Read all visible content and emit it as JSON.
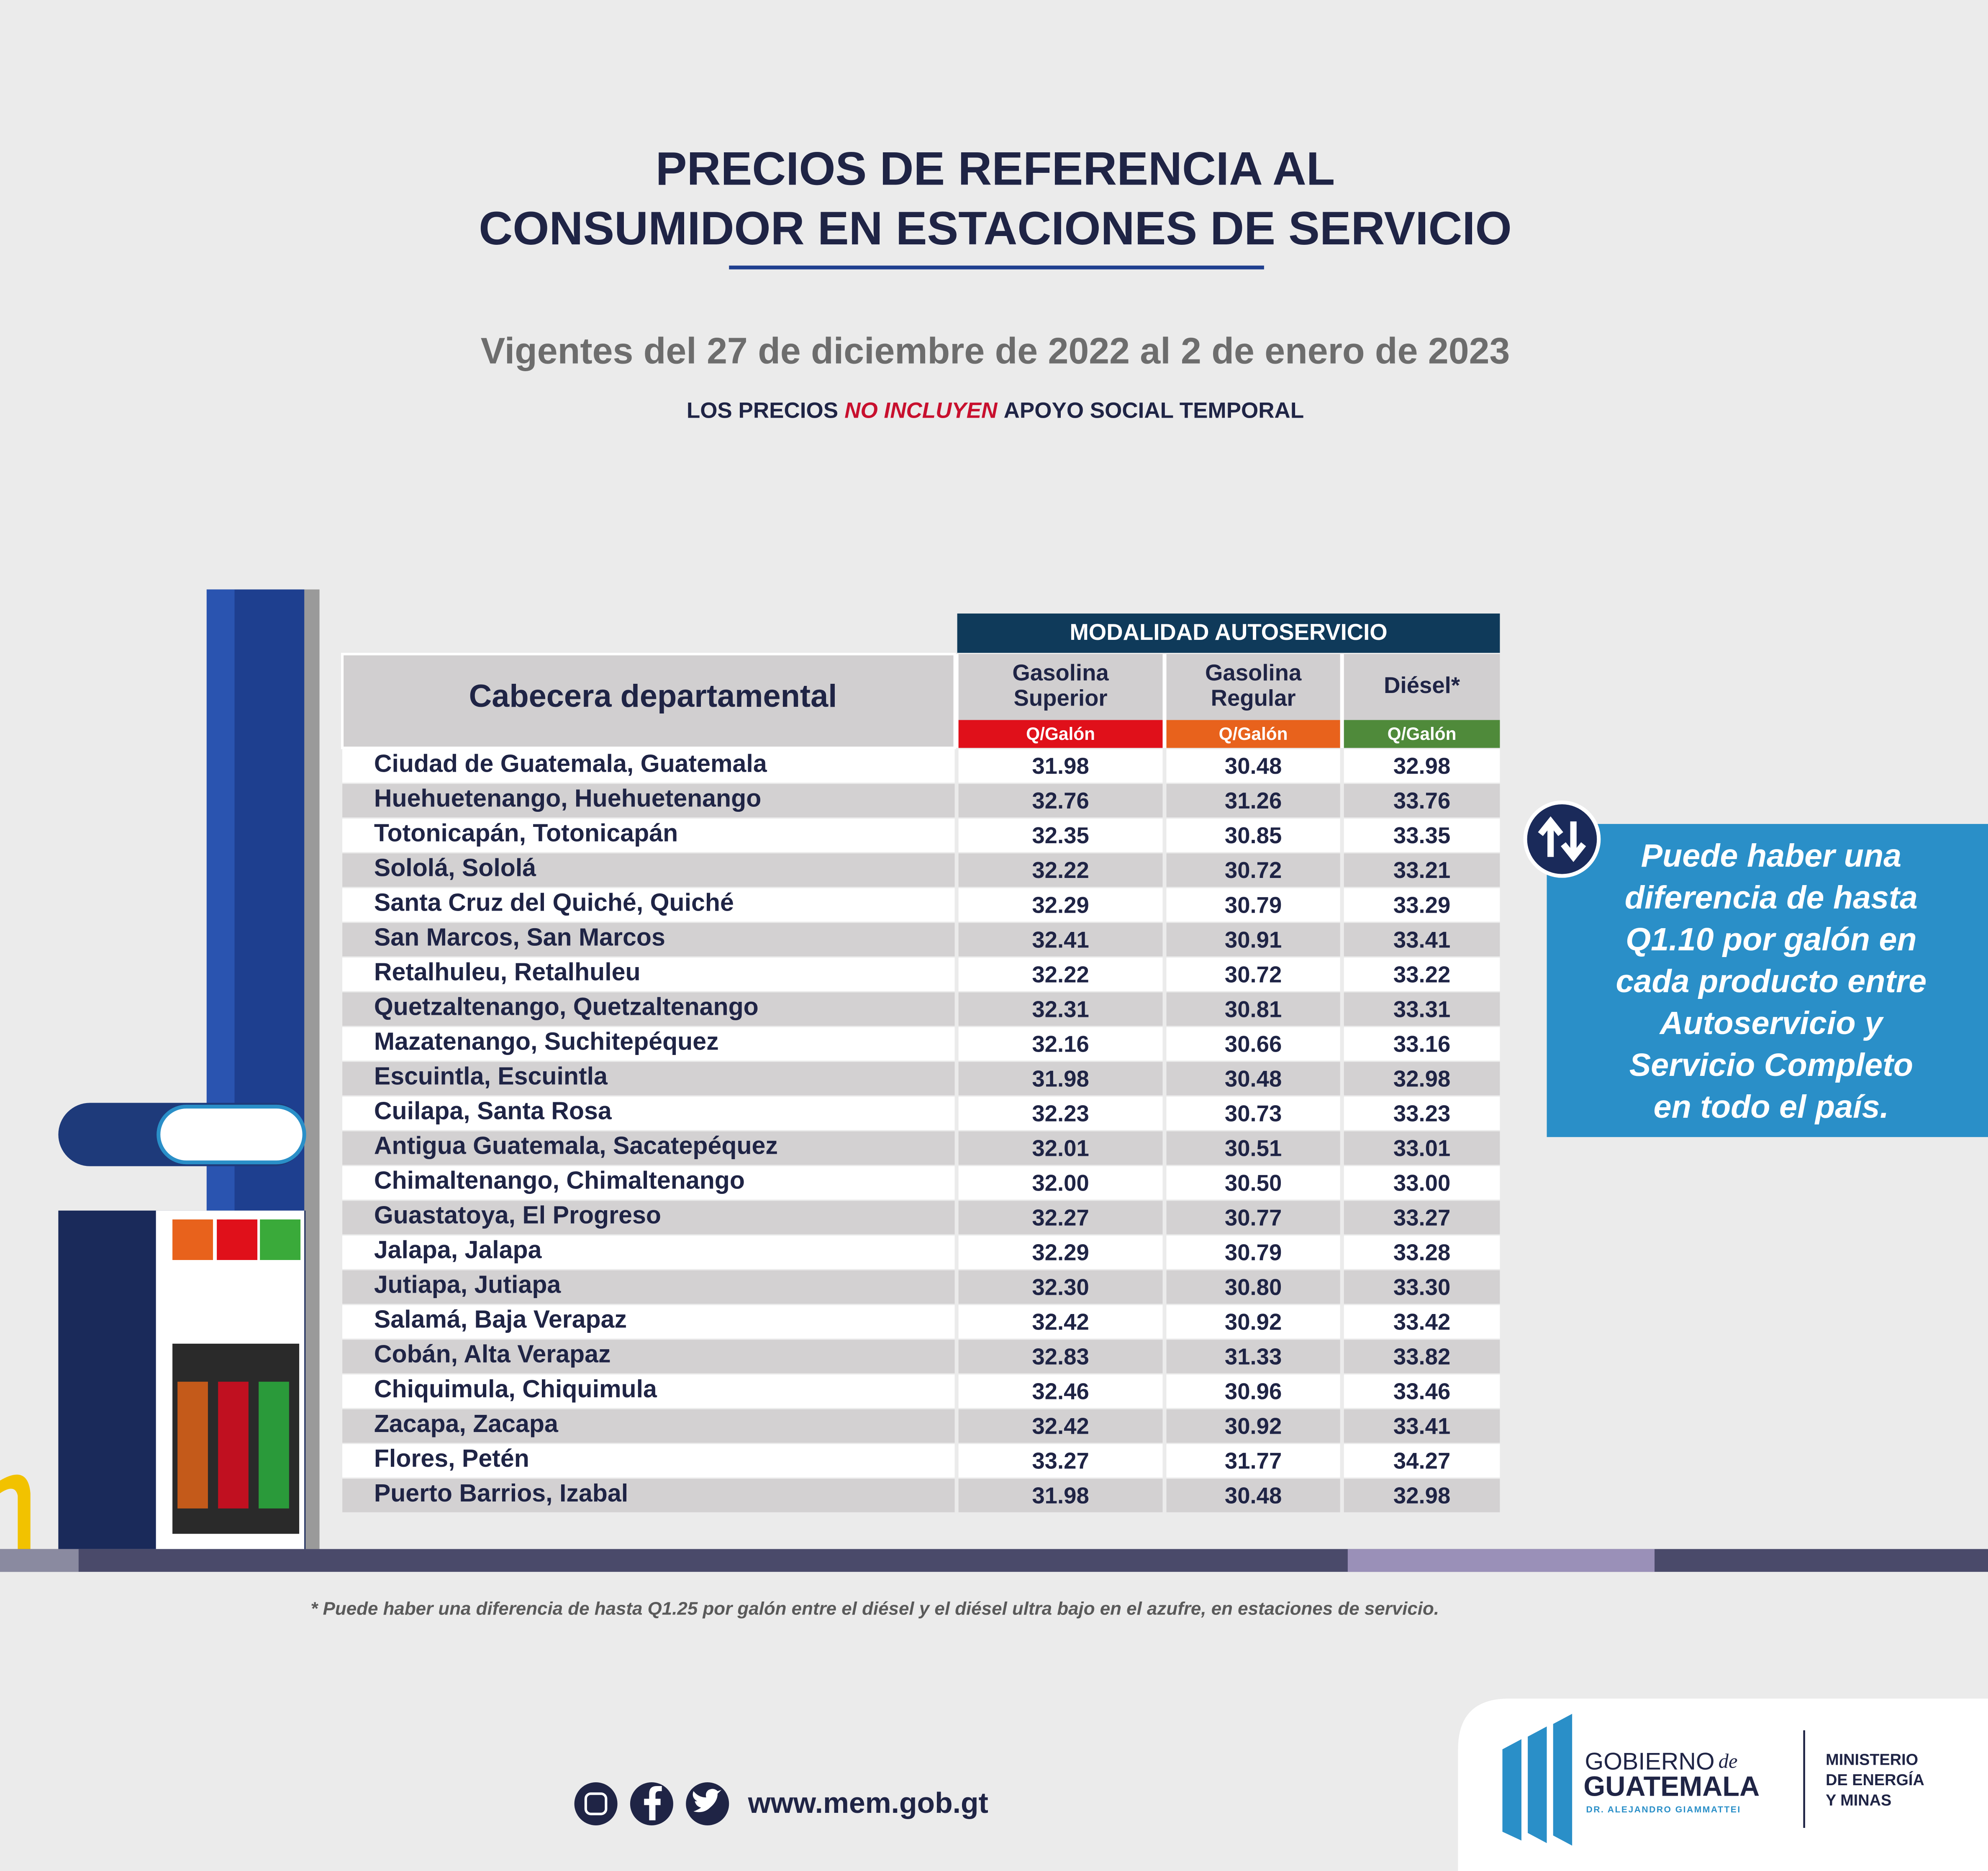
{
  "header": {
    "title_lines": [
      "PRECIOS DE REFERENCIA AL",
      "CONSUMIDOR EN ESTACIONES DE SERVICIO"
    ],
    "validity": "Vigentes del 27 de diciembre de 2022 al 2 de enero de 2023",
    "notice": {
      "before": "LOS PRECIOS",
      "highlight": "NO INCLUYEN",
      "after": "APOYO SOCIAL TEMPORAL"
    }
  },
  "table": {
    "group_header": "MODALIDAD AUTOSERVICIO",
    "name_header": "Cabecera departamental",
    "columns": [
      {
        "lines": [
          "Gasolina",
          "Superior"
        ],
        "unit": "Q/Galón",
        "color": "#e0101a"
      },
      {
        "lines": [
          "Gasolina",
          "Regular"
        ],
        "unit": "Q/Galón",
        "color": "#e8621c"
      },
      {
        "lines": [
          "Diésel*"
        ],
        "unit": "Q/Galón",
        "color": "#4f8a3a"
      }
    ],
    "rows": [
      [
        "Ciudad de Guatemala, Guatemala",
        "31.98",
        "30.48",
        "32.98"
      ],
      [
        "Huehuetenango, Huehuetenango",
        "32.76",
        "31.26",
        "33.76"
      ],
      [
        "Totonicapán, Totonicapán",
        "32.35",
        "30.85",
        "33.35"
      ],
      [
        "Sololá, Sololá",
        "32.22",
        "30.72",
        "33.21"
      ],
      [
        "Santa Cruz del Quiché, Quiché",
        "32.29",
        "30.79",
        "33.29"
      ],
      [
        "San Marcos, San Marcos",
        "32.41",
        "30.91",
        "33.41"
      ],
      [
        "Retalhuleu, Retalhuleu",
        "32.22",
        "30.72",
        "33.22"
      ],
      [
        "Quetzaltenango, Quetzaltenango",
        "32.31",
        "30.81",
        "33.31"
      ],
      [
        "Mazatenango, Suchitepéquez",
        "32.16",
        "30.66",
        "33.16"
      ],
      [
        "Escuintla, Escuintla",
        "31.98",
        "30.48",
        "32.98"
      ],
      [
        "Cuilapa, Santa Rosa",
        "32.23",
        "30.73",
        "33.23"
      ],
      [
        "Antigua Guatemala, Sacatepéquez",
        "32.01",
        "30.51",
        "33.01"
      ],
      [
        "Chimaltenango, Chimaltenango",
        "32.00",
        "30.50",
        "33.00"
      ],
      [
        "Guastatoya, El Progreso",
        "32.27",
        "30.77",
        "33.27"
      ],
      [
        "Jalapa, Jalapa",
        "32.29",
        "30.79",
        "33.28"
      ],
      [
        "Jutiapa, Jutiapa",
        "32.30",
        "30.80",
        "33.30"
      ],
      [
        "Salamá, Baja Verapaz",
        "32.42",
        "30.92",
        "33.42"
      ],
      [
        "Cobán, Alta Verapaz",
        "32.83",
        "31.33",
        "33.82"
      ],
      [
        "Chiquimula, Chiquimula",
        "32.46",
        "30.96",
        "33.46"
      ],
      [
        "Zacapa, Zacapa",
        "32.42",
        "30.92",
        "33.41"
      ],
      [
        "Flores, Petén",
        "33.27",
        "31.77",
        "34.27"
      ],
      [
        "Puerto Barrios, Izabal",
        "31.98",
        "30.48",
        "32.98"
      ]
    ]
  },
  "side_note": {
    "lines": [
      "Puede haber una",
      "diferencia de hasta",
      "Q1.10 por galón en",
      "cada producto entre",
      "Autoservicio y",
      "Servicio Completo",
      "en todo el país."
    ]
  },
  "footnote": "* Puede haber una diferencia de hasta Q1.25 por galón entre el diésel y el diésel ultra bajo en el azufre, en estaciones de servicio.",
  "footer": {
    "website": "www.mem.gob.gt",
    "logo": {
      "line1": "GOBIERNO",
      "script": "de",
      "line2": "GUATEMALA",
      "line3": "DR. ALEJANDRO GIAMMATTEI",
      "ministry_lines": [
        "MINISTERIO",
        "DE ENERGÍA",
        "Y MINAS"
      ]
    }
  }
}
